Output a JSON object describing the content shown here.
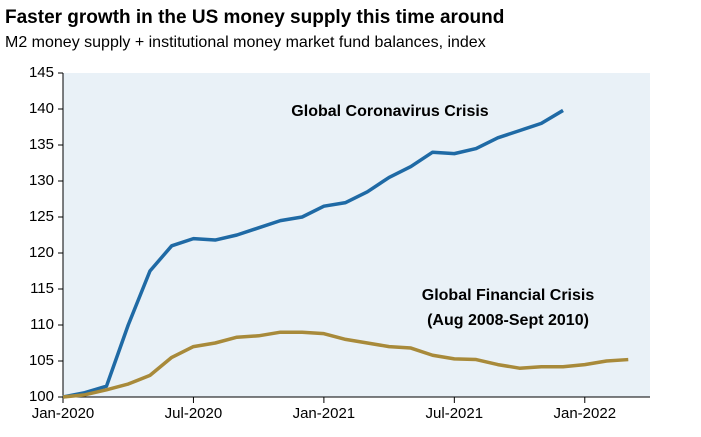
{
  "chart_data": {
    "type": "line",
    "title": "Faster growth in the US money supply this time around",
    "subtitle": "M2 money supply + institutional money market fund balances, index",
    "x": [
      "2020-01",
      "2020-02",
      "2020-03",
      "2020-04",
      "2020-05",
      "2020-06",
      "2020-07",
      "2020-08",
      "2020-09",
      "2020-10",
      "2020-11",
      "2020-12",
      "2021-01",
      "2021-02",
      "2021-03",
      "2021-04",
      "2021-05",
      "2021-06",
      "2021-07",
      "2021-08",
      "2021-09",
      "2021-10",
      "2021-11",
      "2021-12",
      "2022-01",
      "2022-02",
      "2022-03"
    ],
    "series": [
      {
        "name": "Global Coronavirus Crisis",
        "color": "#1f6aa5",
        "values": [
          100,
          100.6,
          101.5,
          110,
          117.5,
          121,
          122,
          121.8,
          122.5,
          123.5,
          124.5,
          125,
          126.5,
          127,
          128.5,
          130.5,
          132,
          134,
          133.8,
          134.5,
          136,
          137,
          138,
          139.8,
          null,
          null,
          null
        ]
      },
      {
        "name": "Global Financial Crisis",
        "color": "#a88a3a",
        "values": [
          100,
          100.3,
          101,
          101.8,
          103,
          105.5,
          107,
          107.5,
          108.3,
          108.5,
          109,
          109,
          108.8,
          108,
          107.5,
          107,
          106.8,
          105.8,
          105.3,
          105.2,
          104.5,
          104,
          104.2,
          104.2,
          104.5,
          105,
          105.2
        ]
      }
    ],
    "annotations": [
      "(Aug 2008-Sept 2010)"
    ],
    "xlim": [
      "2020-01",
      "2022-04"
    ],
    "xticks": [
      {
        "value": "2020-01",
        "label": "Jan-2020"
      },
      {
        "value": "2020-07",
        "label": "Jul-2020"
      },
      {
        "value": "2021-01",
        "label": "Jan-2021"
      },
      {
        "value": "2021-07",
        "label": "Jul-2021"
      },
      {
        "value": "2022-01",
        "label": "Jan-2022"
      }
    ],
    "ylim": [
      100,
      145
    ],
    "yticks": [
      100,
      105,
      110,
      115,
      120,
      125,
      130,
      135,
      140,
      145
    ],
    "grid": true
  }
}
